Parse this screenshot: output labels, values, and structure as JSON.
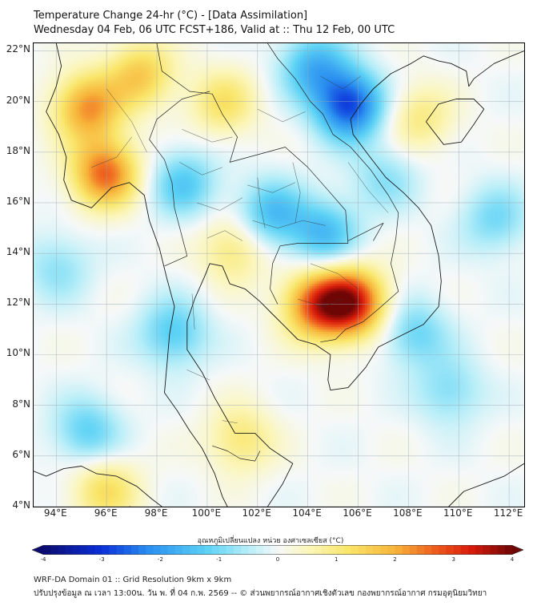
{
  "title": {
    "line1": "Temperature Change 24-hr (°C) - [Data Assimilation]",
    "line2": "Wednesday 04 Feb, 06 UTC FCST+186, Valid at :: Thu 12 Feb, 00 UTC"
  },
  "map": {
    "lat_labels": [
      "22°N",
      "20°N",
      "18°N",
      "16°N",
      "14°N",
      "12°N",
      "10°N",
      "8°N",
      "6°N",
      "4°N"
    ],
    "lon_labels": [
      "94°E",
      "96°E",
      "98°E",
      "100°E",
      "102°E",
      "104°E",
      "106°E",
      "108°E",
      "110°E",
      "112°E"
    ],
    "lat_range": [
      4,
      22.3
    ],
    "lon_range": [
      93.1,
      112.6
    ],
    "grid": true,
    "features": [
      {
        "name": "warm",
        "value": 3.2,
        "lon": 105.7,
        "lat": 12.1
      },
      {
        "name": "warm",
        "value": 2.5,
        "lon": 104.3,
        "lat": 12.0
      },
      {
        "name": "warm",
        "value": 2.6,
        "lon": 95.9,
        "lat": 17.2
      },
      {
        "name": "warm",
        "value": 2.2,
        "lon": 95.2,
        "lat": 19.8
      },
      {
        "name": "warm",
        "value": 1.6,
        "lon": 97.3,
        "lat": 21.1
      },
      {
        "name": "warm",
        "value": 1.2,
        "lon": 100.6,
        "lat": 20.0
      },
      {
        "name": "warm",
        "value": 1.1,
        "lon": 101.0,
        "lat": 14.2
      },
      {
        "name": "warm",
        "value": 1.3,
        "lon": 95.9,
        "lat": 4.7
      },
      {
        "name": "warm",
        "value": 1.1,
        "lon": 101.3,
        "lat": 6.7
      },
      {
        "name": "warm",
        "value": 1.0,
        "lon": 108.4,
        "lat": 19.4
      },
      {
        "name": "cool",
        "value": -2.8,
        "lon": 105.6,
        "lat": 19.9
      },
      {
        "name": "cool",
        "value": -1.6,
        "lon": 104.2,
        "lat": 21.4
      },
      {
        "name": "cool",
        "value": -1.5,
        "lon": 102.5,
        "lat": 15.6
      },
      {
        "name": "cool",
        "value": -1.5,
        "lon": 104.6,
        "lat": 14.8
      },
      {
        "name": "cool",
        "value": -1.3,
        "lon": 99.0,
        "lat": 16.8
      },
      {
        "name": "cool",
        "value": -1.3,
        "lon": 98.6,
        "lat": 10.9
      },
      {
        "name": "cool",
        "value": -1.2,
        "lon": 95.2,
        "lat": 7.0
      },
      {
        "name": "cool",
        "value": -1.0,
        "lon": 111.4,
        "lat": 15.4
      },
      {
        "name": "cool",
        "value": -1.1,
        "lon": 108.2,
        "lat": 10.9
      },
      {
        "name": "cool",
        "value": -0.9,
        "lon": 109.6,
        "lat": 8.6
      },
      {
        "name": "cool",
        "value": -0.8,
        "lon": 94.0,
        "lat": 13.5
      },
      {
        "name": "cool",
        "value": -0.8,
        "lon": 107.0,
        "lat": 17.0
      }
    ]
  },
  "colorbar": {
    "title": "อุณหภูมิเปลี่ยนแปลง หน่วย องศาเซลเซียส (°C)",
    "ticks": [
      "-4",
      "-3",
      "-2",
      "-1",
      "0",
      "1",
      "2",
      "3",
      "4"
    ],
    "range": [
      -4,
      4
    ],
    "stops": [
      {
        "v": -4.0,
        "c": "#0b0b6e"
      },
      {
        "v": -3.0,
        "c": "#0a2fd9"
      },
      {
        "v": -2.2,
        "c": "#2a8ff0"
      },
      {
        "v": -1.2,
        "c": "#5cd2f5"
      },
      {
        "v": -0.5,
        "c": "#b7eef8"
      },
      {
        "v": 0.0,
        "c": "#f5f8f8"
      },
      {
        "v": 0.5,
        "c": "#fbf6bd"
      },
      {
        "v": 1.2,
        "c": "#f9e66a"
      },
      {
        "v": 2.0,
        "c": "#f7b43a"
      },
      {
        "v": 2.7,
        "c": "#ee5a1c"
      },
      {
        "v": 3.3,
        "c": "#d81b0b"
      },
      {
        "v": 4.0,
        "c": "#6e0606"
      }
    ]
  },
  "footer": {
    "line1": "WRF-DA Domain 01 :: Grid Resolution 9km x 9km",
    "line2": "ปรับปรุงข้อมูล ณ เวลา 13:00น. วัน พ. ที่ 04 ก.พ. 2569 -- © ส่วนพยากรณ์อากาศเชิงตัวเลข กองพยากรณ์อากาศ กรมอุตุนิยมวิทยา"
  }
}
